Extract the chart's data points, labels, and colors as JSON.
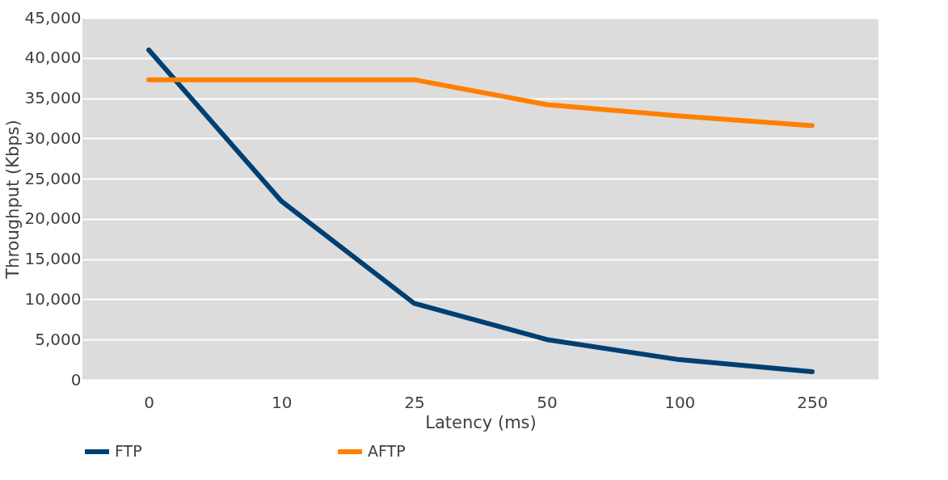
{
  "chart_data": {
    "type": "line",
    "xlabel": "Latency (ms)",
    "ylabel": "Throughput (Kbps)",
    "categories": [
      "0",
      "10",
      "25",
      "50",
      "100",
      "250"
    ],
    "series": [
      {
        "name": "FTP",
        "color": "#003f72",
        "values": [
          41000,
          22200,
          9500,
          5000,
          2500,
          1000
        ]
      },
      {
        "name": "AFTP",
        "color": "#ff7f00",
        "values": [
          37300,
          37300,
          37300,
          34200,
          32800,
          31600
        ]
      }
    ],
    "ylim": [
      0,
      45000
    ],
    "yticks": [
      {
        "value": 0,
        "label": "0"
      },
      {
        "value": 5000,
        "label": "5,000"
      },
      {
        "value": 10000,
        "label": "10,000"
      },
      {
        "value": 15000,
        "label": "15,000"
      },
      {
        "value": 20000,
        "label": "20,000"
      },
      {
        "value": 25000,
        "label": "25,000"
      },
      {
        "value": 30000,
        "label": "30,000"
      },
      {
        "value": 35000,
        "label": "35,000"
      },
      {
        "value": 40000,
        "label": "40,000"
      },
      {
        "value": 45000,
        "label": "45,000"
      }
    ],
    "grid": "y",
    "legend": "bottom",
    "marker": "none",
    "line_style": "solid"
  }
}
